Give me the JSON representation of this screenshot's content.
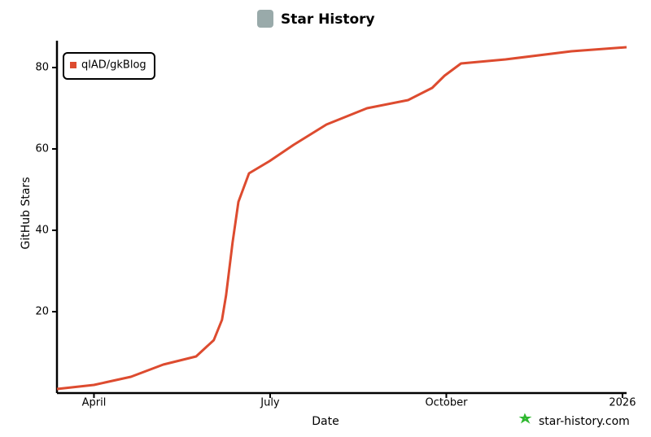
{
  "chart_data": {
    "type": "line",
    "title": "Star History",
    "xlabel": "Date",
    "ylabel": "GitHub Stars",
    "watermark": "star-history.com",
    "x": [
      3.37,
      4.0,
      4.63,
      5.18,
      5.74,
      6.04,
      6.18,
      6.25,
      6.36,
      6.46,
      6.64,
      6.99,
      7.4,
      7.96,
      8.65,
      9.35,
      9.76,
      9.97,
      10.25,
      11.01,
      12.13,
      13.07
    ],
    "series": [
      {
        "name": "qlAD/gkBlog",
        "color": "#dd4b2f",
        "values": [
          1,
          2,
          4,
          7,
          9,
          13,
          18,
          24,
          37,
          47,
          54,
          57,
          61,
          66,
          70,
          72,
          75,
          78,
          81,
          82,
          84,
          85
        ]
      }
    ],
    "xlim": [
      3.37,
      13.07
    ],
    "xticks": [
      {
        "value": 4,
        "label": "April"
      },
      {
        "value": 7,
        "label": "July"
      },
      {
        "value": 10,
        "label": "October"
      },
      {
        "value": 13,
        "label": "2026"
      }
    ],
    "ylim": [
      0,
      86
    ],
    "yticks": [
      20,
      40,
      60,
      80
    ],
    "grid": false,
    "legend": "top-left"
  }
}
